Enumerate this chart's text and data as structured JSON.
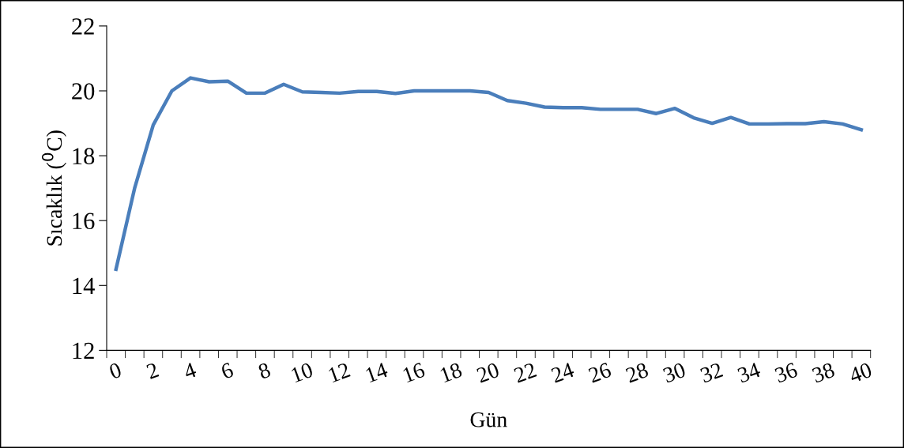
{
  "chart_data": {
    "type": "line",
    "xlabel": "Gün",
    "ylabel": "Sıcaklık ($^{0}$C)",
    "categories": [
      "0",
      null,
      "2",
      null,
      "4",
      null,
      "6",
      null,
      "8",
      null,
      "10",
      null,
      "12",
      null,
      "14",
      null,
      "16",
      null,
      "18",
      null,
      "20",
      null,
      "22",
      null,
      "24",
      null,
      "26",
      null,
      "28",
      null,
      "30",
      null,
      "32",
      null,
      "34",
      null,
      "36",
      null,
      "38",
      null,
      "40"
    ],
    "series": [
      {
        "color": "#4a7ebb",
        "values": [
          14.5,
          17.0,
          18.95,
          20.0,
          20.4,
          20.28,
          20.3,
          19.93,
          19.93,
          20.2,
          19.97,
          19.95,
          19.93,
          19.98,
          19.98,
          19.92,
          20.0,
          20.0,
          20.0,
          20.0,
          19.95,
          19.7,
          19.62,
          19.5,
          19.48,
          19.48,
          19.43,
          19.43,
          19.43,
          19.3,
          19.46,
          19.17,
          19.0,
          19.18,
          18.98,
          18.98,
          18.99,
          18.99,
          19.05,
          18.98,
          18.8
        ]
      }
    ],
    "ylim": [
      12,
      22
    ],
    "yticks": [
      12,
      14,
      16,
      18,
      20,
      22
    ],
    "grid": false,
    "marker": "none",
    "line_style": "solid"
  }
}
